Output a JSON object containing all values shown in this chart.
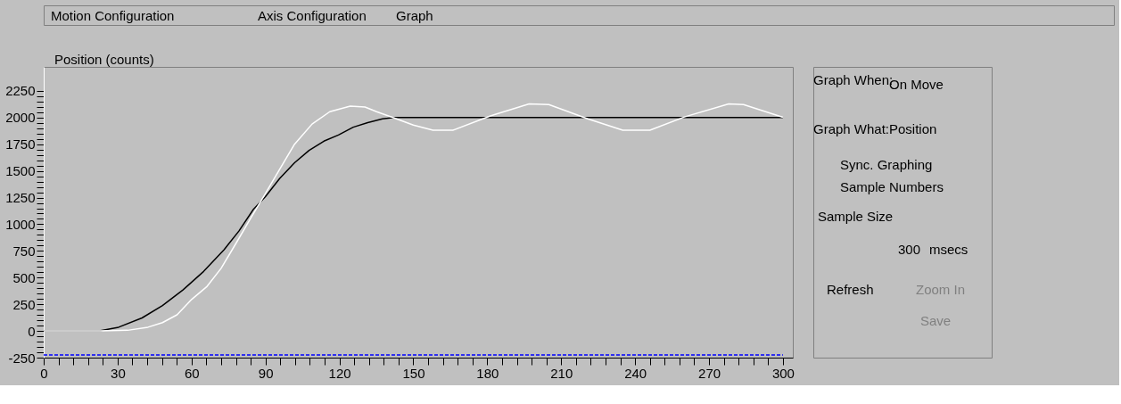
{
  "chart_data": {
    "type": "line",
    "ylabel": "Position (counts)",
    "annotations": [
      "Motion Configuration",
      "Axis Configuration",
      "Graph",
      "Graph When:",
      "On Move",
      "Graph What:",
      "Position",
      "Sync. Graphing",
      "Sample Numbers",
      "Sample Size",
      "300",
      "msecs",
      "Refresh",
      "Zoom In",
      "Save"
    ],
    "series": [
      {
        "color": "#000000",
        "x": [
          0,
          22.6,
          30.4,
          39.9,
          48.2,
          56.5,
          64.9,
          73.2,
          79.2,
          85.1,
          89.9,
          95.8,
          101.8,
          107.7,
          113.7,
          119.6,
          125.6,
          131.5,
          137.5,
          142.2,
          300
        ],
        "values": [
          0,
          0,
          35,
          122,
          238,
          384,
          558,
          762,
          936,
          1140,
          1256,
          1430,
          1576,
          1692,
          1779,
          1837,
          1910,
          1953,
          1988,
          2000,
          2000
        ]
      },
      {
        "color": "#ffffff",
        "x": [
          0,
          22.6,
          34.0,
          42.3,
          48.2,
          54.1,
          60.1,
          66.1,
          72.0,
          78.0,
          83.9,
          89.9,
          95.8,
          101.8,
          108.9,
          116.1,
          124.4,
          130.4,
          135.1,
          142.2,
          150,
          158,
          166,
          181.5,
          197,
          205,
          220.8,
          235,
          246,
          260,
          278,
          284,
          300
        ],
        "values": [
          0,
          0,
          6,
          35,
          78,
          151,
          297,
          413,
          587,
          820,
          1052,
          1285,
          1517,
          1750,
          1939,
          2055,
          2108,
          2099,
          2055,
          1997,
          1930,
          1881,
          1881,
          2017,
          2128,
          2122,
          1988,
          1881,
          1881,
          2006,
          2128,
          2122,
          2003
        ]
      },
      {
        "color": "#0000ff",
        "line_style": "dashed",
        "x": [
          0,
          300
        ],
        "values": [
          -225,
          -225
        ]
      }
    ],
    "xlim": [
      0,
      304
    ],
    "ylim": [
      -250,
      2475
    ],
    "xticks": [
      0,
      {
        "value": 6,
        "label": null
      },
      {
        "value": 12,
        "label": null
      },
      {
        "value": 18,
        "label": null
      },
      {
        "value": 24,
        "label": null
      },
      30,
      {
        "value": 36,
        "label": null
      },
      {
        "value": 42,
        "label": null
      },
      {
        "value": 48,
        "label": null
      },
      {
        "value": 54,
        "label": null
      },
      60,
      {
        "value": 66,
        "label": null
      },
      {
        "value": 72,
        "label": null
      },
      {
        "value": 78,
        "label": null
      },
      {
        "value": 84,
        "label": null
      },
      90,
      {
        "value": 96,
        "label": null
      },
      {
        "value": 102,
        "label": null
      },
      {
        "value": 108,
        "label": null
      },
      {
        "value": 114,
        "label": null
      },
      120,
      {
        "value": 126,
        "label": null
      },
      {
        "value": 132,
        "label": null
      },
      {
        "value": 138,
        "label": null
      },
      {
        "value": 144,
        "label": null
      },
      150,
      {
        "value": 156,
        "label": null
      },
      {
        "value": 162,
        "label": null
      },
      {
        "value": 168,
        "label": null
      },
      {
        "value": 174,
        "label": null
      },
      180,
      {
        "value": 186,
        "label": null
      },
      {
        "value": 192,
        "label": null
      },
      {
        "value": 198,
        "label": null
      },
      {
        "value": 204,
        "label": null
      },
      210,
      {
        "value": 216,
        "label": null
      },
      {
        "value": 222,
        "label": null
      },
      {
        "value": 228,
        "label": null
      },
      {
        "value": 234,
        "label": null
      },
      240,
      {
        "value": 246,
        "label": null
      },
      {
        "value": 252,
        "label": null
      },
      {
        "value": 258,
        "label": null
      },
      {
        "value": 264,
        "label": null
      },
      270,
      {
        "value": 276,
        "label": null
      },
      {
        "value": 282,
        "label": null
      },
      {
        "value": 288,
        "label": null
      },
      {
        "value": 294,
        "label": null
      },
      300
    ],
    "yticks": [
      -250,
      {
        "value": -200,
        "label": null
      },
      {
        "value": -150,
        "label": null
      },
      {
        "value": -100,
        "label": null
      },
      {
        "value": -50,
        "label": null
      },
      0,
      {
        "value": 50,
        "label": null
      },
      {
        "value": 100,
        "label": null
      },
      {
        "value": 150,
        "label": null
      },
      {
        "value": 200,
        "label": null
      },
      250,
      {
        "value": 300,
        "label": null
      },
      {
        "value": 350,
        "label": null
      },
      {
        "value": 400,
        "label": null
      },
      {
        "value": 450,
        "label": null
      },
      500,
      {
        "value": 550,
        "label": null
      },
      {
        "value": 600,
        "label": null
      },
      {
        "value": 650,
        "label": null
      },
      {
        "value": 700,
        "label": null
      },
      750,
      {
        "value": 800,
        "label": null
      },
      {
        "value": 850,
        "label": null
      },
      {
        "value": 900,
        "label": null
      },
      {
        "value": 950,
        "label": null
      },
      1000,
      {
        "value": 1050,
        "label": null
      },
      {
        "value": 1100,
        "label": null
      },
      {
        "value": 1150,
        "label": null
      },
      {
        "value": 1200,
        "label": null
      },
      1250,
      {
        "value": 1300,
        "label": null
      },
      {
        "value": 1350,
        "label": null
      },
      {
        "value": 1400,
        "label": null
      },
      {
        "value": 1450,
        "label": null
      },
      1500,
      {
        "value": 1550,
        "label": null
      },
      {
        "value": 1600,
        "label": null
      },
      {
        "value": 1650,
        "label": null
      },
      {
        "value": 1700,
        "label": null
      },
      1750,
      {
        "value": 1800,
        "label": null
      },
      {
        "value": 1850,
        "label": null
      },
      {
        "value": 1900,
        "label": null
      },
      {
        "value": 1950,
        "label": null
      },
      2000,
      {
        "value": 2050,
        "label": null
      },
      {
        "value": 2100,
        "label": null
      },
      {
        "value": 2150,
        "label": null
      },
      {
        "value": 2200,
        "label": null
      },
      2250
    ],
    "grid": false,
    "legend": false,
    "marker": "none",
    "line_style": "solid"
  }
}
